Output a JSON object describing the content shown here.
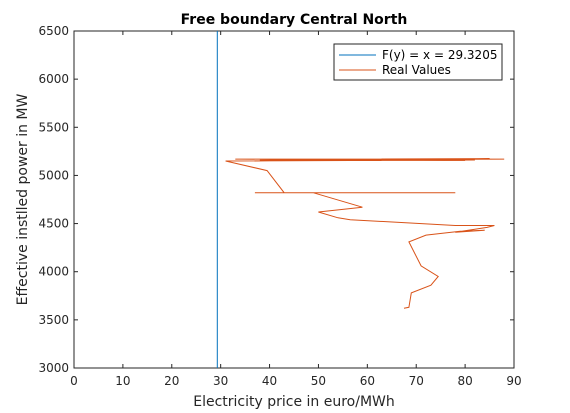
{
  "chart_data": {
    "type": "line",
    "title": "Free boundary Central North",
    "xlabel": "Electricity price in euro/MWh",
    "ylabel": "Effective instlled power in MW",
    "xlim": [
      0,
      90
    ],
    "ylim": [
      3000,
      6500
    ],
    "xticks": [
      "0",
      "10",
      "20",
      "30",
      "40",
      "50",
      "60",
      "70",
      "80",
      "90"
    ],
    "yticks": [
      "3000",
      "3500",
      "4000",
      "4500",
      "5000",
      "5500",
      "6000",
      "6500"
    ],
    "grid": false,
    "legend_position": "top-right",
    "colors": {
      "boundary": "#0072BD",
      "real": "#D95319"
    },
    "series": [
      {
        "name": "F(y) = x = 29.3205",
        "x": [
          29.3205,
          29.3205
        ],
        "y": [
          3000,
          6500
        ]
      },
      {
        "name": "Real Values",
        "x": [
          67.5,
          68.5,
          69,
          73,
          74.5,
          71,
          68.5,
          72,
          79,
          84,
          78,
          84.5,
          86,
          78,
          56.5,
          54,
          50,
          59,
          49,
          78,
          37,
          43,
          39.5,
          31,
          82,
          33,
          88,
          40,
          75,
          36,
          85,
          41,
          67,
          34,
          80,
          38
        ],
        "y": [
          3620,
          3630,
          3780,
          3860,
          3950,
          4060,
          4310,
          4380,
          4420,
          4430,
          4410,
          4460,
          4480,
          4480,
          4540,
          4560,
          4620,
          4670,
          4820,
          4820,
          4820,
          4820,
          5050,
          5150,
          5160,
          5170,
          5170,
          5160,
          5165,
          5150,
          5175,
          5165,
          5160,
          5170,
          5155,
          5160
        ]
      }
    ]
  }
}
